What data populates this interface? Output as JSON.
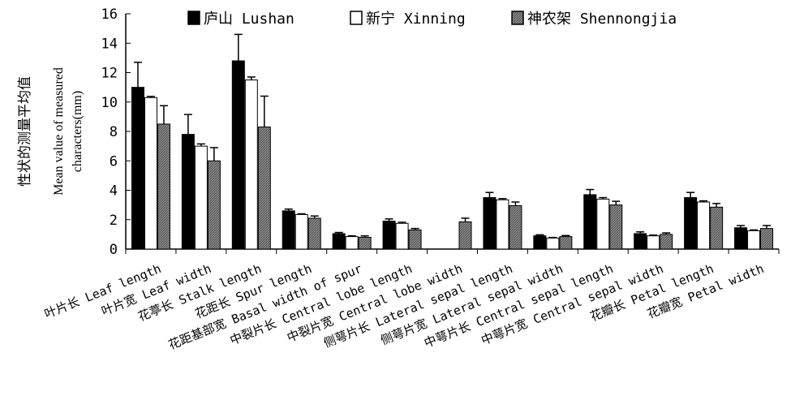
{
  "chart_data": {
    "type": "bar",
    "title": "",
    "ylabel_zh": "性状的测量平均值",
    "ylabel_en_line1": "Mean value of measured",
    "ylabel_en_line2": "characters(mm)",
    "ylim": [
      0,
      16
    ],
    "yticks": [
      0,
      2,
      4,
      6,
      8,
      10,
      12,
      14,
      16
    ],
    "legend_position": "top",
    "grid": false,
    "categories": [
      "叶片长 Leaf length",
      "叶片宽 Leaf width",
      "花葶长 Stalk length",
      "花距长 Spur length",
      "花距基部宽 Basal width of spur",
      "中裂片长 Central lobe length",
      "中裂片宽 Central lobe width",
      "侧萼片长 Lateral sepal length",
      "侧萼片宽 Lateral sepal width",
      "中萼片长 Central sepal length",
      "中萼片宽 Central sepal width",
      "花瓣长 Petal length",
      "花瓣宽 Petal width"
    ],
    "series": [
      {
        "name": "庐山 Lushan",
        "fill": "#000000",
        "values": [
          11.0,
          7.8,
          12.8,
          2.6,
          1.05,
          1.9,
          null,
          3.5,
          0.9,
          3.7,
          1.05,
          3.5,
          1.45
        ],
        "errors": [
          1.7,
          1.35,
          1.8,
          0.12,
          0.08,
          0.15,
          null,
          0.35,
          0.07,
          0.35,
          0.12,
          0.35,
          0.15
        ]
      },
      {
        "name": "新宁 Xinning",
        "fill": "#ffffff",
        "values": [
          10.3,
          7.0,
          11.5,
          2.35,
          0.85,
          1.75,
          null,
          3.35,
          0.75,
          3.4,
          0.9,
          3.2,
          1.25
        ],
        "errors": [
          0.08,
          0.15,
          0.2,
          0.05,
          0.05,
          0.07,
          null,
          0.08,
          0.04,
          0.1,
          0.05,
          0.08,
          0.05
        ]
      },
      {
        "name": "神农架 Shennongjia",
        "fill": "pattern-gray",
        "values": [
          8.5,
          6.0,
          8.3,
          2.1,
          0.8,
          1.3,
          1.85,
          2.95,
          0.85,
          3.0,
          1.0,
          2.85,
          1.4
        ],
        "errors": [
          1.25,
          0.9,
          2.1,
          0.15,
          0.1,
          0.1,
          0.25,
          0.25,
          0.07,
          0.25,
          0.1,
          0.25,
          0.2
        ]
      }
    ]
  }
}
